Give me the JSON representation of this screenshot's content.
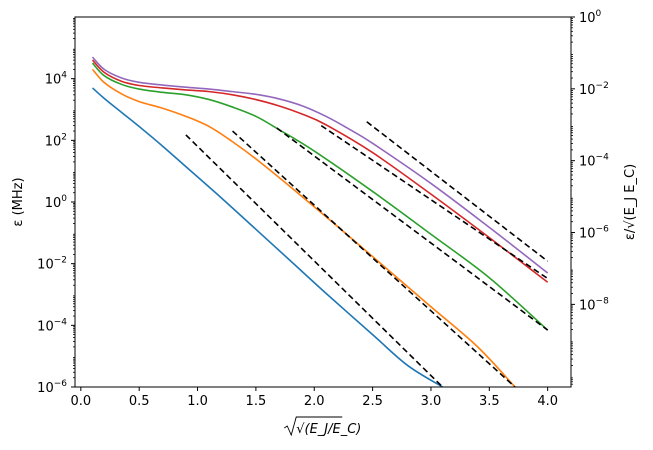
{
  "chart_data": {
    "type": "line",
    "title": "",
    "xlabel": "√(E_J/E_C)",
    "ylabel": "ε  (MHz)",
    "ylabel_right": "ε/√(E_J E_C)",
    "x_scale": "linear",
    "y_scale": "log",
    "xlim": [
      -0.05,
      4.2
    ],
    "ylim": [
      1e-06,
      1000000.0
    ],
    "x_ticks": [
      0.0,
      0.5,
      1.0,
      1.5,
      2.0,
      2.5,
      3.0,
      3.5,
      4.0
    ],
    "x_tick_labels": [
      "0.0",
      "0.5",
      "1.0",
      "1.5",
      "2.0",
      "2.5",
      "3.0",
      "3.5",
      "4.0"
    ],
    "y_ticks_exp": [
      -6,
      -4,
      -2,
      0,
      2,
      4
    ],
    "y2_range_exp": [
      -10.3,
      0
    ],
    "y2_ticks_exp": [
      -8,
      -6,
      -4,
      -2,
      0
    ],
    "grid": false,
    "legend": "none",
    "series": [
      {
        "color": "#1f77b4",
        "style": "solid",
        "points": [
          [
            0.1,
            5000
          ],
          [
            0.2,
            2300
          ],
          [
            0.35,
            800
          ],
          [
            0.5,
            280
          ],
          [
            0.7,
            65
          ],
          [
            0.9,
            14
          ],
          [
            1.2,
            1.4
          ],
          [
            1.5,
            0.13
          ],
          [
            1.8,
            0.012
          ],
          [
            2.1,
            0.0011
          ],
          [
            2.5,
            5e-05
          ],
          [
            2.8,
            5e-06
          ],
          [
            3.1,
            1e-06
          ]
        ]
      },
      {
        "color": "#ff7f0e",
        "style": "solid",
        "points": [
          [
            0.1,
            20000
          ],
          [
            0.2,
            7500
          ],
          [
            0.35,
            3200
          ],
          [
            0.5,
            1800
          ],
          [
            0.7,
            1100
          ],
          [
            0.9,
            600
          ],
          [
            1.1,
            280
          ],
          [
            1.3,
            90
          ],
          [
            1.5,
            25
          ],
          [
            1.8,
            3
          ],
          [
            2.2,
            0.16
          ],
          [
            2.6,
            0.008
          ],
          [
            3.0,
            0.0004
          ],
          [
            3.4,
            2e-05
          ],
          [
            3.72,
            1e-06
          ]
        ]
      },
      {
        "color": "#2ca02c",
        "style": "solid",
        "points": [
          [
            0.1,
            32000
          ],
          [
            0.2,
            12500
          ],
          [
            0.35,
            6500
          ],
          [
            0.5,
            4600
          ],
          [
            0.7,
            3600
          ],
          [
            0.9,
            3000
          ],
          [
            1.1,
            2100
          ],
          [
            1.3,
            1200
          ],
          [
            1.5,
            600
          ],
          [
            1.7,
            220
          ],
          [
            2.0,
            45
          ],
          [
            2.5,
            2.2
          ],
          [
            3.0,
            0.09
          ],
          [
            3.5,
            0.0035
          ],
          [
            4.0,
            7e-05
          ]
        ]
      },
      {
        "color": "#d62728",
        "style": "solid",
        "points": [
          [
            0.1,
            40000
          ],
          [
            0.2,
            16000
          ],
          [
            0.35,
            8200
          ],
          [
            0.5,
            6000
          ],
          [
            0.7,
            5000
          ],
          [
            0.9,
            4300
          ],
          [
            1.1,
            3800
          ],
          [
            1.3,
            3000
          ],
          [
            1.5,
            2100
          ],
          [
            1.7,
            1300
          ],
          [
            1.9,
            700
          ],
          [
            2.1,
            320
          ],
          [
            2.5,
            40
          ],
          [
            3.0,
            1.8
          ],
          [
            3.5,
            0.07
          ],
          [
            4.0,
            0.0025
          ]
        ]
      },
      {
        "color": "#9467bd",
        "style": "solid",
        "points": [
          [
            0.1,
            50000
          ],
          [
            0.2,
            20000
          ],
          [
            0.35,
            10500
          ],
          [
            0.5,
            7600
          ],
          [
            0.7,
            6200
          ],
          [
            0.9,
            5300
          ],
          [
            1.1,
            4600
          ],
          [
            1.3,
            3800
          ],
          [
            1.5,
            3100
          ],
          [
            1.7,
            2200
          ],
          [
            1.9,
            1300
          ],
          [
            2.1,
            600
          ],
          [
            2.3,
            230
          ],
          [
            2.5,
            80
          ],
          [
            3.0,
            4
          ],
          [
            3.5,
            0.15
          ],
          [
            4.0,
            0.005
          ]
        ]
      },
      {
        "color": "#000000",
        "style": "dashed",
        "points": [
          [
            0.9,
            150
          ],
          [
            3.1,
            1e-06
          ]
        ]
      },
      {
        "color": "#000000",
        "style": "dashed",
        "points": [
          [
            1.3,
            200
          ],
          [
            3.72,
            1e-06
          ]
        ]
      },
      {
        "color": "#000000",
        "style": "dashed",
        "points": [
          [
            1.68,
            250
          ],
          [
            4.0,
            7e-05
          ]
        ]
      },
      {
        "color": "#000000",
        "style": "dashed",
        "points": [
          [
            2.06,
            300
          ],
          [
            4.0,
            0.0033
          ]
        ]
      },
      {
        "color": "#000000",
        "style": "dashed",
        "points": [
          [
            2.45,
            400
          ],
          [
            4.0,
            0.012
          ]
        ]
      }
    ]
  }
}
